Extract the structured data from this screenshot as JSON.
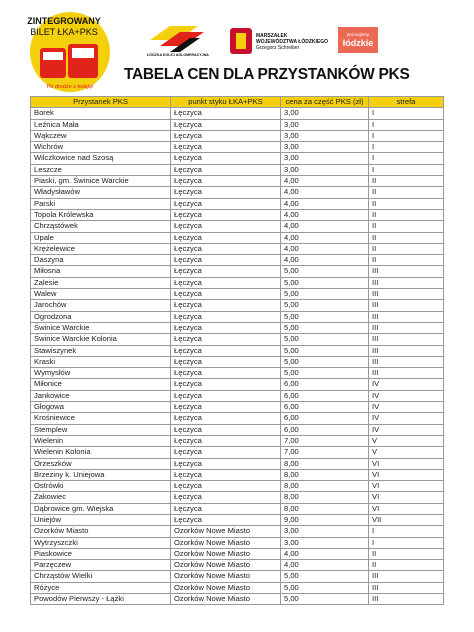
{
  "header": {
    "ticket_logo": {
      "line1": "ZINTEGROWANY",
      "line2": "BILET ŁKA+PKS",
      "slogan": "Po drodze z koleją!"
    },
    "lka_logo": "ŁÓDZKA KOLEJ AGLOMERACYJNA",
    "marshal_logo": {
      "line1": "MARSZAŁEK",
      "line2": "WOJEWÓDZTWA ŁÓDZKIEGO",
      "line3": "Grzegorz Schreiber"
    },
    "region_logo": {
      "line1": "promujemy",
      "line2": "łódzkie"
    }
  },
  "title": "TABELA CEN DLA PRZYSTANKÓW PKS",
  "table": {
    "columns": [
      "Przystanek PKS",
      "punkt styku ŁKA+PKS",
      "cena za część PKS (zł)",
      "strefa"
    ],
    "rows": [
      [
        "Borek",
        "Łęczyca",
        "3,00",
        "I"
      ],
      [
        "Leźnica Mała",
        "Łęczyca",
        "3,00",
        "I"
      ],
      [
        "Wąkczew",
        "Łęczyca",
        "3,00",
        "I"
      ],
      [
        "Wichrów",
        "Łęczyca",
        "3,00",
        "I"
      ],
      [
        "Wilczkowice nad Szosą",
        "Łęczyca",
        "3,00",
        "I"
      ],
      [
        "Leszcze",
        "Łęczyca",
        "3,00",
        "I"
      ],
      [
        "Piaski, gm. Świnice Warckie",
        "Łęczyca",
        "4,00",
        "II"
      ],
      [
        "Władysławów",
        "Łęczyca",
        "4,00",
        "II"
      ],
      [
        "Parski",
        "Łęczyca",
        "4,00",
        "II"
      ],
      [
        "Topola Królewska",
        "Łęczyca",
        "4,00",
        "II"
      ],
      [
        "Chrząstówek",
        "Łęczyca",
        "4,00",
        "II"
      ],
      [
        "Upale",
        "Łęczyca",
        "4,00",
        "II"
      ],
      [
        "Krężelewice",
        "Łęczyca",
        "4,00",
        "II"
      ],
      [
        "Daszyna",
        "Łęczyca",
        "4,00",
        "II"
      ],
      [
        "Miłosna",
        "Łęczyca",
        "5,00",
        "III"
      ],
      [
        "Zalesie",
        "Łęczyca",
        "5,00",
        "III"
      ],
      [
        "Walew",
        "Łęczyca",
        "5,00",
        "III"
      ],
      [
        "Jarochów",
        "Łęczyca",
        "5,00",
        "III"
      ],
      [
        "Ogrodzona",
        "Łęczyca",
        "5,00",
        "III"
      ],
      [
        "Świnice Warckie",
        "Łęczyca",
        "5,00",
        "III"
      ],
      [
        "Świnice Warckie Kolonia",
        "Łęczyca",
        "5,00",
        "III"
      ],
      [
        "Stawiszynek",
        "Łęczyca",
        "5,00",
        "III"
      ],
      [
        "Kraski",
        "Łęczyca",
        "5,00",
        "III"
      ],
      [
        "Wymysłów",
        "Łęczyca",
        "5,00",
        "III"
      ],
      [
        "Miłonice",
        "Łęczyca",
        "6,00",
        "IV"
      ],
      [
        "Jankowice",
        "Łęczyca",
        "6,00",
        "IV"
      ],
      [
        "Głogowa",
        "Łęczyca",
        "6,00",
        "IV"
      ],
      [
        "Krośniewice",
        "Łęczyca",
        "6,00",
        "IV"
      ],
      [
        "Stemplew",
        "Łęczyca",
        "6,00",
        "IV"
      ],
      [
        "Wielenin",
        "Łęczyca",
        "7,00",
        "V"
      ],
      [
        "Wielenin Kolonia",
        "Łęczyca",
        "7,00",
        "V"
      ],
      [
        "Orzeszków",
        "Łęczyca",
        "8,00",
        "VI"
      ],
      [
        "Brzeziny k. Uniejowa",
        "Łęczyca",
        "8,00",
        "VI"
      ],
      [
        "Ostrówki",
        "Łęczyca",
        "8,00",
        "VI"
      ],
      [
        "Zakowiec",
        "Łęczyca",
        "8,00",
        "VI"
      ],
      [
        "Dąbrowice gm. Wiejska",
        "Łęczyca",
        "8,00",
        "VI"
      ],
      [
        "Uniejów",
        "Łęczyca",
        "9,00",
        "VII"
      ],
      [
        "Ozorków Miasto",
        "Ozorków Nowe Miasto",
        "3,00",
        "I"
      ],
      [
        "Wytrzyszczki",
        "Ozorków Nowe Miasto",
        "3,00",
        "I"
      ],
      [
        "Piaskowice",
        "Ozorków Nowe Miasto",
        "4,00",
        "II"
      ],
      [
        "Parzęczew",
        "Ozorków Nowe Miasto",
        "4,00",
        "II"
      ],
      [
        "Chrząstów Wielki",
        "Ozorków Nowe Miasto",
        "5,00",
        "III"
      ],
      [
        "Różyce",
        "Ozorków Nowe Miasto",
        "5,00",
        "III"
      ],
      [
        "Powodów Pierwszy - Łążki",
        "Ozorków Nowe Miasto",
        "5,00",
        "III"
      ]
    ]
  }
}
